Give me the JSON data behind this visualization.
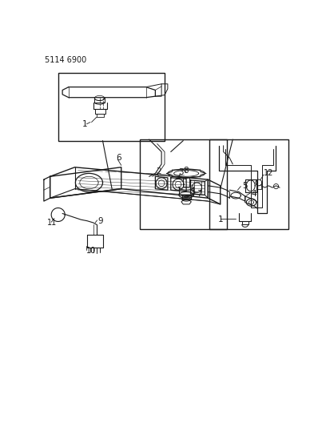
{
  "background_color": "#ffffff",
  "part_number": "5114 6900",
  "fig_width": 4.08,
  "fig_height": 5.33,
  "dpi": 100,
  "line_color": "#1a1a1a"
}
